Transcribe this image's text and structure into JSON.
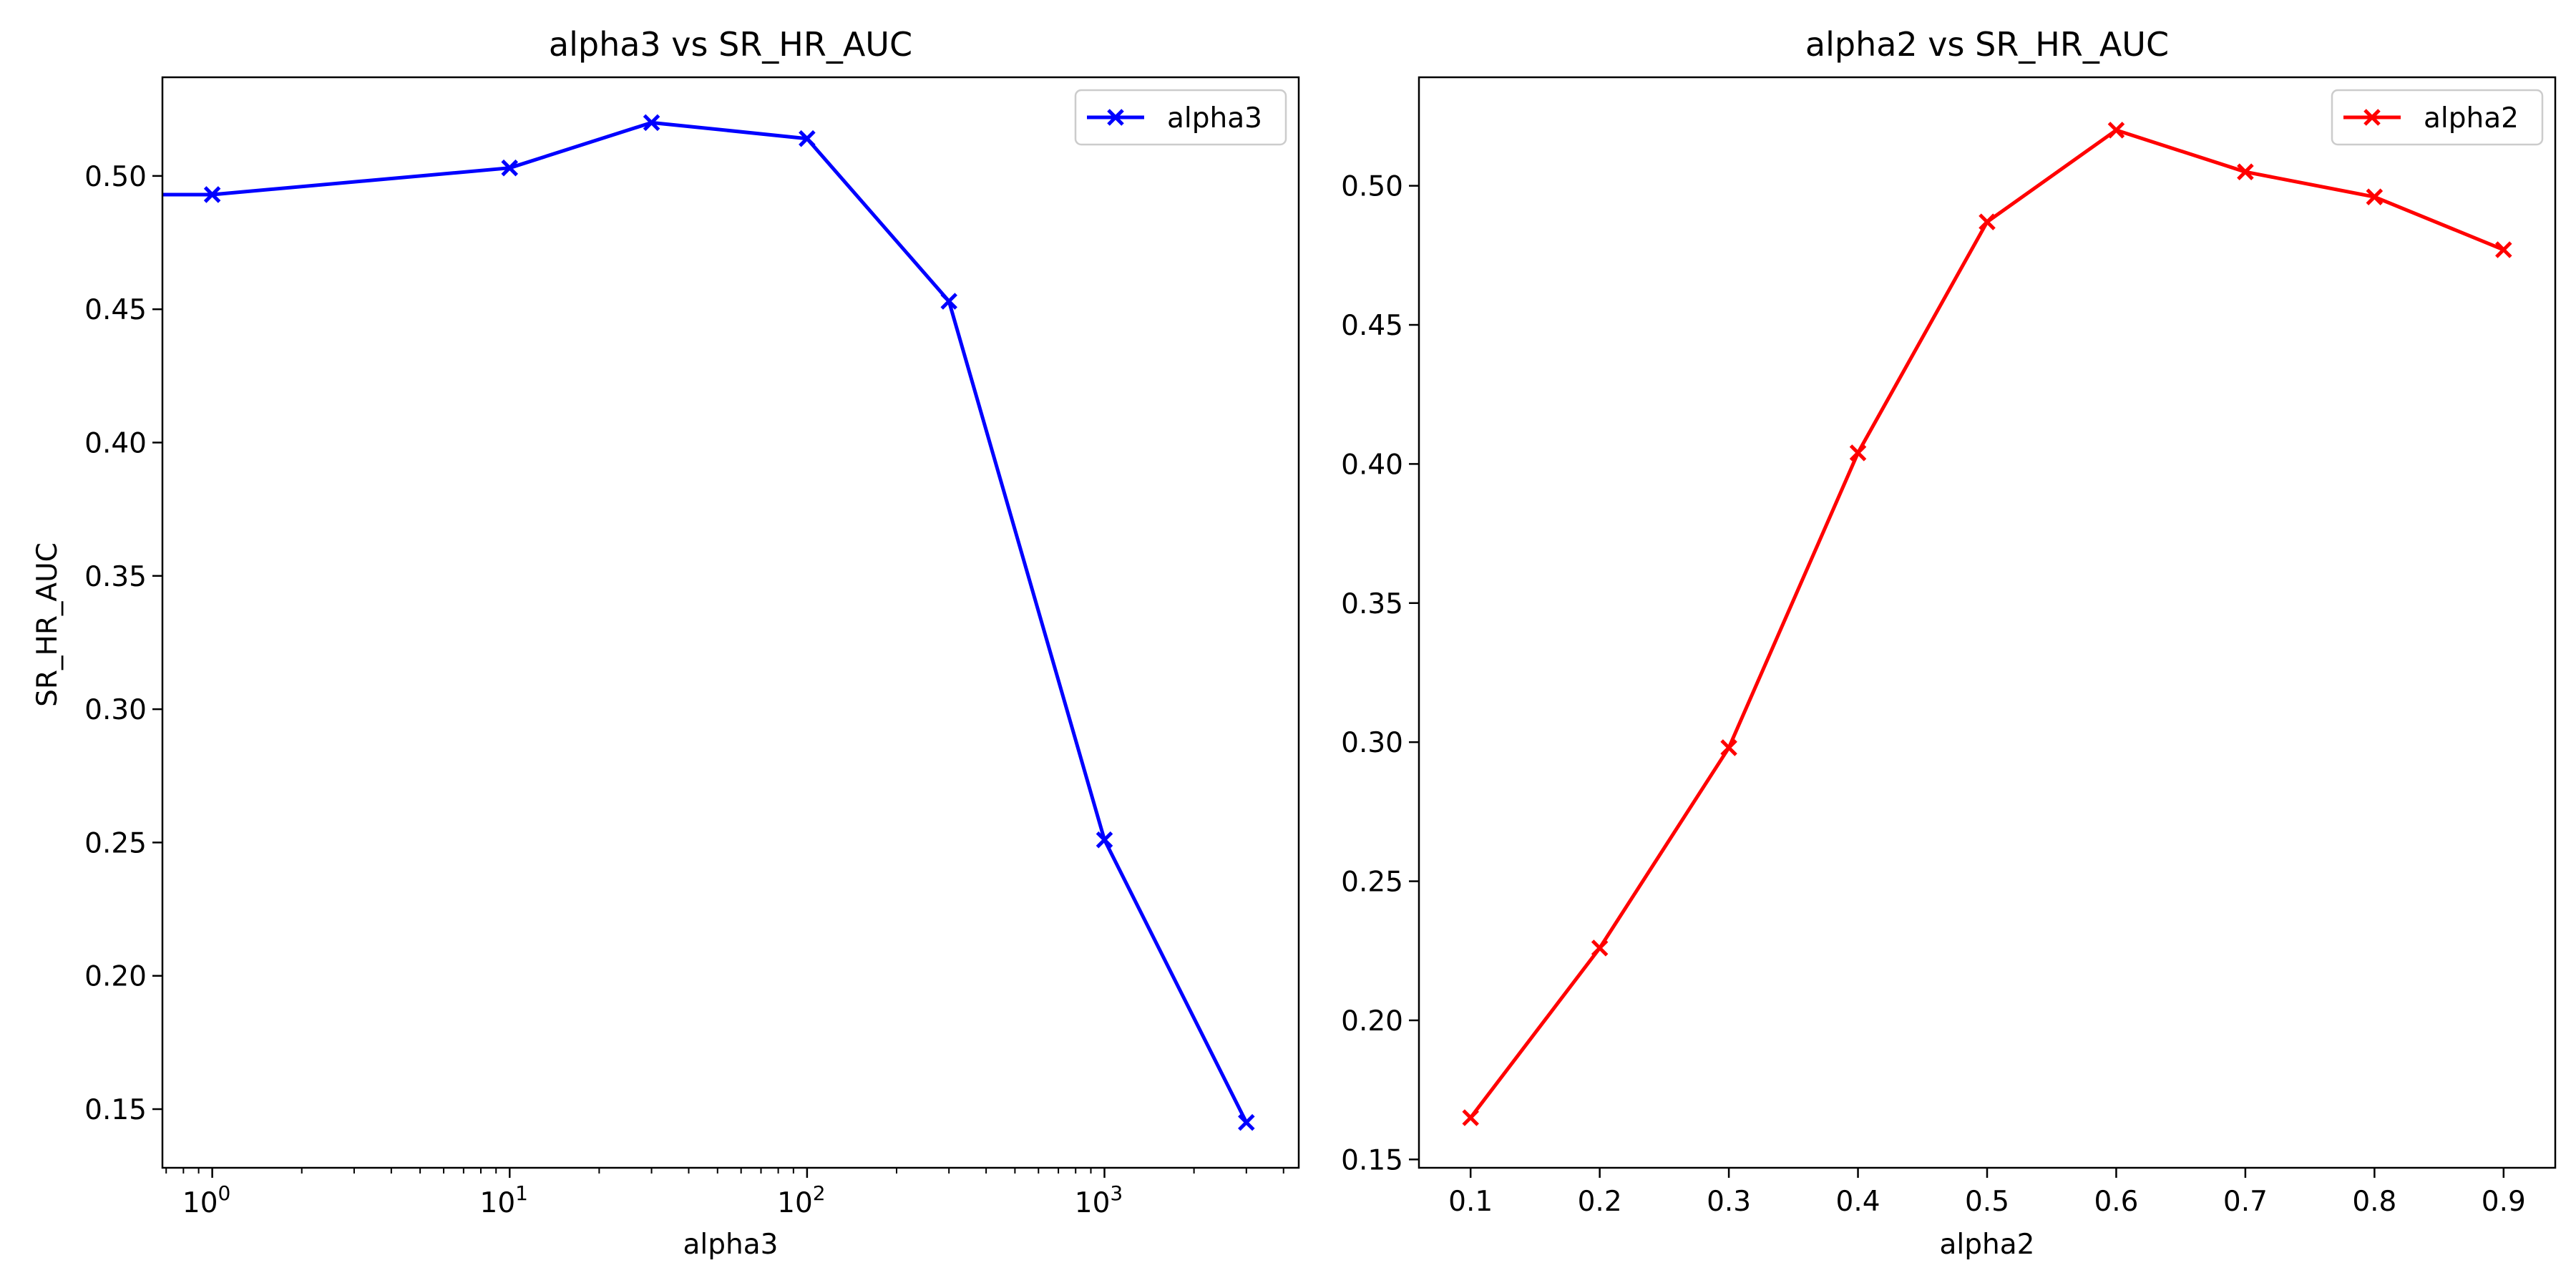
{
  "chart_data": [
    {
      "type": "line",
      "title": "alpha3 vs SR_HR_AUC",
      "xlabel": "alpha3",
      "ylabel": "SR_HR_AUC",
      "xscale": "log",
      "xlim": [
        0.68,
        4500
      ],
      "ylim": [
        0.128,
        0.537
      ],
      "xticks": [
        1,
        10,
        100,
        1000
      ],
      "xtick_labels": [
        {
          "base": "10",
          "exp": "0"
        },
        {
          "base": "10",
          "exp": "1"
        },
        {
          "base": "10",
          "exp": "2"
        },
        {
          "base": "10",
          "exp": "3"
        }
      ],
      "yticks": [
        0.15,
        0.2,
        0.25,
        0.3,
        0.35,
        0.4,
        0.45,
        0.5
      ],
      "ytick_labels": [
        "0.15",
        "0.20",
        "0.25",
        "0.30",
        "0.35",
        "0.40",
        "0.45",
        "0.50"
      ],
      "legend_position": "upper right",
      "grid": false,
      "series": [
        {
          "name": "alpha3",
          "color": "#0000ff",
          "marker": "X",
          "x": [
            0.1,
            1,
            10,
            30,
            100,
            300,
            1000,
            3000
          ],
          "y": [
            0.493,
            0.493,
            0.503,
            0.52,
            0.514,
            0.453,
            0.251,
            0.145
          ]
        }
      ]
    },
    {
      "type": "line",
      "title": "alpha2 vs SR_HR_AUC",
      "xlabel": "alpha2",
      "ylabel": "",
      "xscale": "linear",
      "xlim": [
        0.06,
        0.94
      ],
      "ylim": [
        0.147,
        0.539
      ],
      "xticks": [
        0.1,
        0.2,
        0.3,
        0.4,
        0.5,
        0.6,
        0.7,
        0.8,
        0.9
      ],
      "xtick_labels": [
        "0.1",
        "0.2",
        "0.3",
        "0.4",
        "0.5",
        "0.6",
        "0.7",
        "0.8",
        "0.9"
      ],
      "yticks": [
        0.15,
        0.2,
        0.25,
        0.3,
        0.35,
        0.4,
        0.45,
        0.5
      ],
      "ytick_labels": [
        "0.15",
        "0.20",
        "0.25",
        "0.30",
        "0.35",
        "0.40",
        "0.45",
        "0.50"
      ],
      "legend_position": "upper right",
      "grid": false,
      "series": [
        {
          "name": "alpha2",
          "color": "#ff0000",
          "marker": "X",
          "x": [
            0.1,
            0.2,
            0.3,
            0.4,
            0.5,
            0.6,
            0.7,
            0.8,
            0.9
          ],
          "y": [
            0.165,
            0.226,
            0.298,
            0.404,
            0.487,
            0.52,
            0.505,
            0.496,
            0.477
          ]
        }
      ]
    }
  ]
}
